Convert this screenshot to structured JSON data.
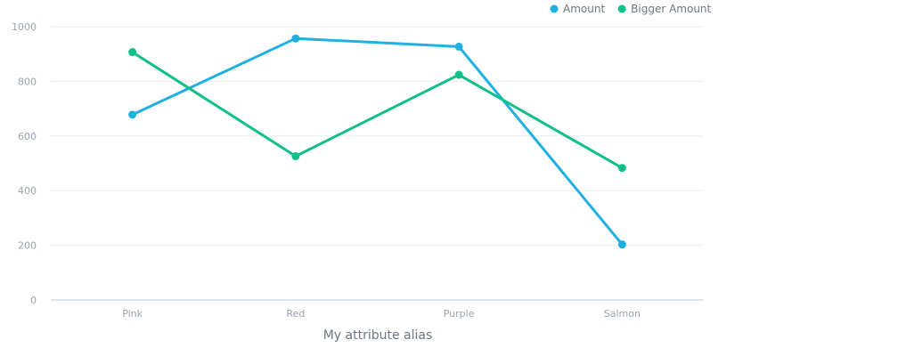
{
  "chart_data": {
    "type": "line",
    "categories": [
      "Pink",
      "Red",
      "Purple",
      "Salmon"
    ],
    "series": [
      {
        "name": "Amount",
        "color": "#1eb0e0",
        "values": [
          678,
          957,
          927,
          203
        ]
      },
      {
        "name": "Bigger Amount",
        "color": "#10bf8a",
        "values": [
          907,
          526,
          824,
          483
        ]
      }
    ],
    "title": "",
    "xlabel": "My attribute alias",
    "ylabel": "",
    "ylim": [
      0,
      1000
    ],
    "yticks": [
      0,
      200,
      400,
      600,
      800,
      1000
    ],
    "grid": true,
    "legend_position": "top-right"
  }
}
